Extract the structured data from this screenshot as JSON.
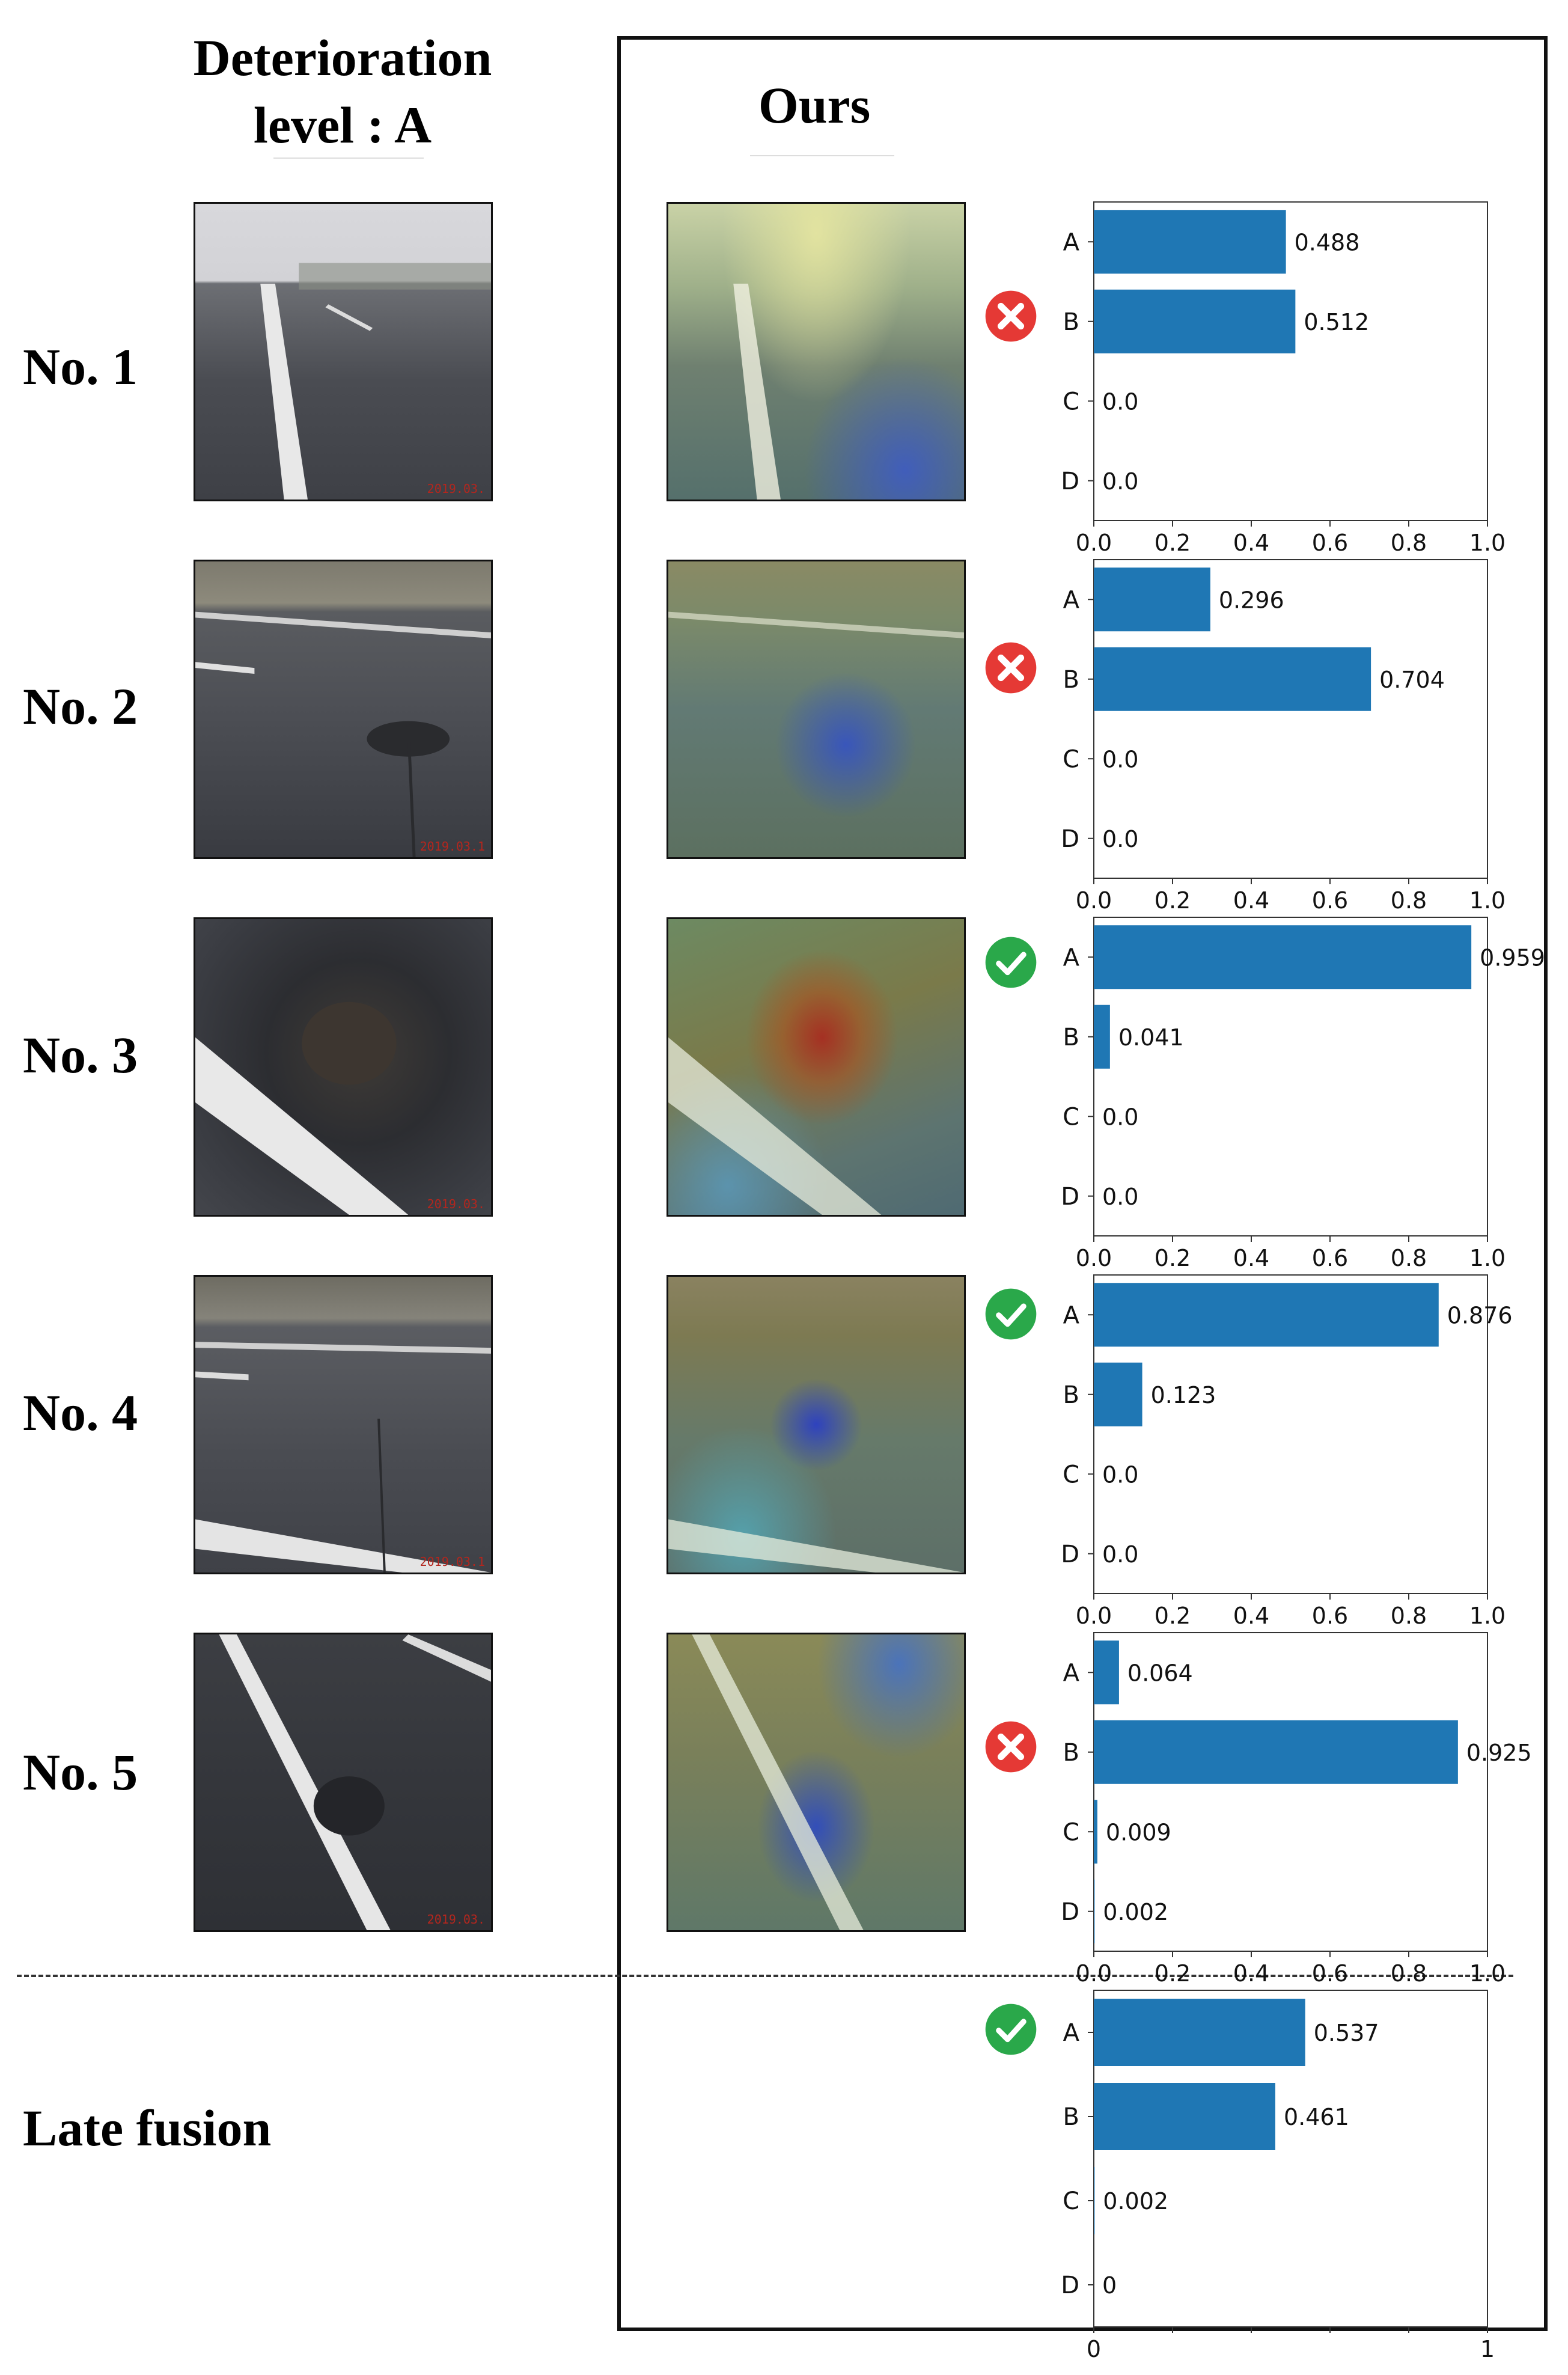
{
  "header": {
    "left_line1": "Deterioration",
    "left_line2": "level : A",
    "right": "Ours"
  },
  "rows": [
    {
      "label": "No. 1",
      "prediction": "wrong",
      "stamp": "2019.03."
    },
    {
      "label": "No. 2",
      "prediction": "wrong",
      "stamp": "2019.03.1"
    },
    {
      "label": "No. 3",
      "prediction": "correct",
      "stamp": "2019.03."
    },
    {
      "label": "No. 4",
      "prediction": "correct",
      "stamp": "2019.03.1"
    },
    {
      "label": "No. 5",
      "prediction": "wrong",
      "stamp": "2019.03."
    }
  ],
  "fusion": {
    "label": "Late fusion",
    "prediction": "correct"
  },
  "colors": {
    "bar": "#1f77b4",
    "correct": "#2aa84a",
    "wrong": "#e53935",
    "axis": "#333333"
  },
  "icons": {
    "correct": "check-circle-icon",
    "wrong": "x-circle-icon"
  },
  "chart_data": [
    {
      "type": "bar",
      "orientation": "horizontal",
      "categories": [
        "A",
        "B",
        "C",
        "D"
      ],
      "values": [
        0.488,
        0.512,
        0.0,
        0.0
      ],
      "value_labels": [
        "0.488",
        "0.512",
        "0.0",
        "0.0"
      ],
      "xlim": [
        0,
        1
      ],
      "xticks": [
        "0.0",
        "0.2",
        "0.4",
        "0.6",
        "0.8",
        "1.0"
      ]
    },
    {
      "type": "bar",
      "orientation": "horizontal",
      "categories": [
        "A",
        "B",
        "C",
        "D"
      ],
      "values": [
        0.296,
        0.704,
        0.0,
        0.0
      ],
      "value_labels": [
        "0.296",
        "0.704",
        "0.0",
        "0.0"
      ],
      "xlim": [
        0,
        1
      ],
      "xticks": [
        "0.0",
        "0.2",
        "0.4",
        "0.6",
        "0.8",
        "1.0"
      ]
    },
    {
      "type": "bar",
      "orientation": "horizontal",
      "categories": [
        "A",
        "B",
        "C",
        "D"
      ],
      "values": [
        0.959,
        0.041,
        0.0,
        0.0
      ],
      "value_labels": [
        "0.959",
        "0.041",
        "0.0",
        "0.0"
      ],
      "xlim": [
        0,
        1
      ],
      "xticks": [
        "0.0",
        "0.2",
        "0.4",
        "0.6",
        "0.8",
        "1.0"
      ]
    },
    {
      "type": "bar",
      "orientation": "horizontal",
      "categories": [
        "A",
        "B",
        "C",
        "D"
      ],
      "values": [
        0.876,
        0.123,
        0.0,
        0.0
      ],
      "value_labels": [
        "0.876",
        "0.123",
        "0.0",
        "0.0"
      ],
      "xlim": [
        0,
        1
      ],
      "xticks": [
        "0.0",
        "0.2",
        "0.4",
        "0.6",
        "0.8",
        "1.0"
      ]
    },
    {
      "type": "bar",
      "orientation": "horizontal",
      "categories": [
        "A",
        "B",
        "C",
        "D"
      ],
      "values": [
        0.064,
        0.925,
        0.009,
        0.002
      ],
      "value_labels": [
        "0.064",
        "0.925",
        "0.009",
        "0.002"
      ],
      "xlim": [
        0,
        1
      ],
      "xticks": [
        "0.0",
        "0.2",
        "0.4",
        "0.6",
        "0.8",
        "1.0"
      ]
    },
    {
      "type": "bar",
      "orientation": "horizontal",
      "categories": [
        "A",
        "B",
        "C",
        "D"
      ],
      "values": [
        0.537,
        0.461,
        0.002,
        0
      ],
      "value_labels": [
        "0.537",
        "0.461",
        "0.002",
        "0"
      ],
      "xlim": [
        0,
        1
      ],
      "xticks": [
        "0",
        "",
        "",
        "",
        "",
        "1"
      ]
    }
  ]
}
